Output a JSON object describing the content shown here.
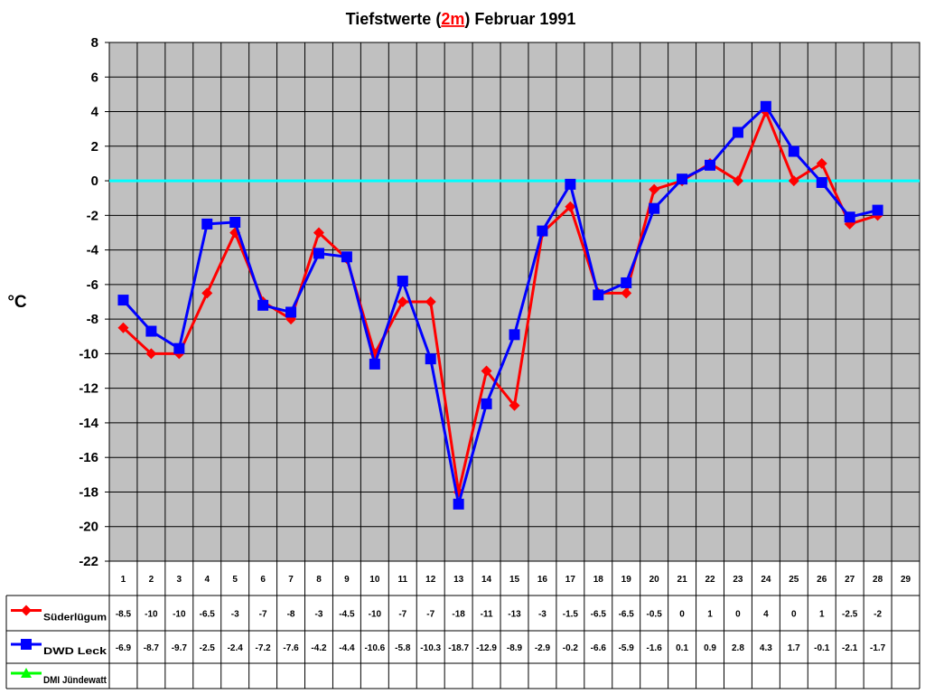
{
  "chart_data": {
    "type": "line",
    "title_prefix": "Tiefstwerte (",
    "title_highlight": "2m",
    "title_suffix": ") Februar 1991",
    "ylabel": "°C",
    "xlabel": "",
    "ylim": [
      -22,
      8
    ],
    "ytick_step": 2,
    "grid": true,
    "legend_position": "bottom-left-table",
    "categories": [
      1,
      2,
      3,
      4,
      5,
      6,
      7,
      8,
      9,
      10,
      11,
      12,
      13,
      14,
      15,
      16,
      17,
      18,
      19,
      20,
      21,
      22,
      23,
      24,
      25,
      26,
      27,
      28,
      29
    ],
    "zero_line_color": "#00ffff",
    "plot_background": "#c0c0c0",
    "series": [
      {
        "name": "Süderlügum",
        "color": "#ff0000",
        "marker": "diamond",
        "values": [
          -8.5,
          -10,
          -10,
          -6.5,
          -3,
          -7,
          -8,
          -3,
          -4.5,
          -10,
          -7,
          -7,
          -18,
          -11,
          -13,
          -3,
          -1.5,
          -6.5,
          -6.5,
          -0.5,
          0,
          1,
          0,
          4,
          0,
          1,
          -2.5,
          -2,
          null
        ],
        "labels": [
          "-8.5",
          "-10",
          "-10",
          "-6.5",
          "-3",
          "-7",
          "-8",
          "-3",
          "-4.5",
          "-10",
          "-7",
          "-7",
          "-18",
          "-11",
          "-13",
          "-3",
          "-1.5",
          "-6.5",
          "-6.5",
          "-0.5",
          "0",
          "1",
          "0",
          "4",
          "0",
          "1",
          "-2.5",
          "-2",
          ""
        ]
      },
      {
        "name": "DWD Leck",
        "color": "#0000ff",
        "marker": "square",
        "values": [
          -6.9,
          -8.7,
          -9.7,
          -2.5,
          -2.4,
          -7.2,
          -7.6,
          -4.2,
          -4.4,
          -10.6,
          -5.8,
          -10.3,
          -18.7,
          -12.9,
          -8.9,
          -2.9,
          -0.2,
          -6.6,
          -5.9,
          -1.6,
          0.1,
          0.9,
          2.8,
          4.3,
          1.7,
          -0.1,
          -2.1,
          -1.7,
          null
        ],
        "labels": [
          "-6.9",
          "-8.7",
          "-9.7",
          "-2.5",
          "-2.4",
          "-7.2",
          "-7.6",
          "-4.2",
          "-4.4",
          "-10.6",
          "-5.8",
          "-10.3",
          "-18.7",
          "-12.9",
          "-8.9",
          "-2.9",
          "-0.2",
          "-6.6",
          "-5.9",
          "-1.6",
          "0.1",
          "0.9",
          "2.8",
          "4.3",
          "1.7",
          "-0.1",
          "-2.1",
          "-1.7",
          ""
        ]
      },
      {
        "name": "DMI Jündewatt",
        "color": "#00ff00",
        "marker": "triangle",
        "values": [
          null,
          null,
          null,
          null,
          null,
          null,
          null,
          null,
          null,
          null,
          null,
          null,
          null,
          null,
          null,
          null,
          null,
          null,
          null,
          null,
          null,
          null,
          null,
          null,
          null,
          null,
          null,
          null,
          null
        ],
        "labels": [
          "",
          "",
          "",
          "",
          "",
          "",
          "",
          "",
          "",
          "",
          "",
          "",
          "",
          "",
          "",
          "",
          "",
          "",
          "",
          "",
          "",
          "",
          "",
          "",
          "",
          "",
          "",
          "",
          ""
        ]
      }
    ]
  }
}
